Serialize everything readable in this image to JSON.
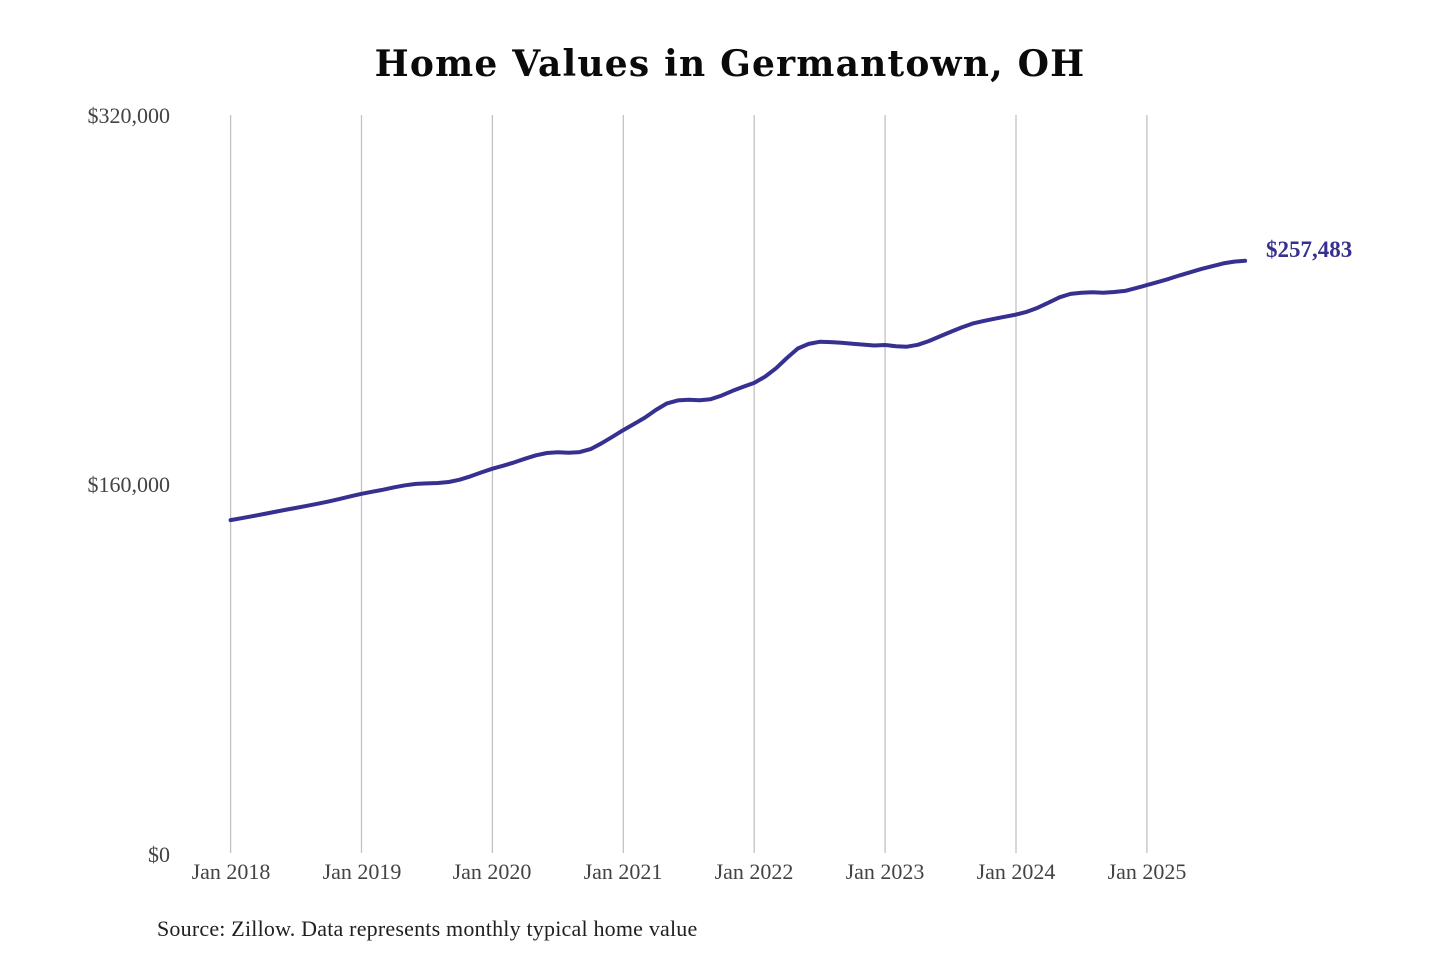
{
  "title": "Home Values in Germantown, OH",
  "end_label": "$257,483",
  "source_note": "Source: Zillow. Data represents monthly typical home value",
  "colors": {
    "line": "#363090",
    "grid": "#c2c2c2",
    "axis_text": "#434343",
    "title_text": "#0a0a0a",
    "source_text": "#202020",
    "background": "#ffffff"
  },
  "chart_data": {
    "type": "line",
    "title": "Home Values in Germantown, OH",
    "xlabel": "",
    "ylabel": "",
    "x_ticks": [
      "Jan 2018",
      "Jan 2019",
      "Jan 2020",
      "Jan 2021",
      "Jan 2022",
      "Jan 2023",
      "Jan 2024",
      "Jan 2025"
    ],
    "y_ticks": [
      "$0",
      "$160,000",
      "$320,000"
    ],
    "y_tick_values": [
      0,
      160000,
      320000
    ],
    "ylim": [
      0,
      320000
    ],
    "grid": "vertical-only",
    "legend": "none",
    "x_unit": "month",
    "x_start": "Jan 2018",
    "x_end": "Oct 2025",
    "final_value": 257483,
    "final_value_label": "$257,483",
    "series": [
      {
        "name": "Typical home value",
        "values": [
          145000,
          145800,
          146700,
          147600,
          148500,
          149400,
          150300,
          151200,
          152100,
          153100,
          154200,
          155300,
          156400,
          157300,
          158200,
          159200,
          160100,
          160700,
          160900,
          161100,
          161500,
          162500,
          164000,
          165700,
          167300,
          168600,
          170000,
          171600,
          173100,
          174100,
          174400,
          174200,
          174500,
          175800,
          178300,
          181100,
          184000,
          186700,
          189500,
          192800,
          195600,
          196900,
          197200,
          197000,
          197400,
          199000,
          201000,
          202800,
          204500,
          207200,
          210800,
          215300,
          219400,
          221400,
          222300,
          222200,
          221900,
          221500,
          221100,
          220700,
          220900,
          220400,
          220200,
          221000,
          222600,
          224600,
          226600,
          228500,
          230200,
          231300,
          232300,
          233200,
          234100,
          235300,
          237100,
          239300,
          241600,
          243100,
          243600,
          243800,
          243600,
          243900,
          244400,
          245600,
          246900,
          248200,
          249600,
          251100,
          252500,
          253900,
          255100,
          256300,
          257100,
          257483
        ]
      }
    ],
    "source": "Source: Zillow. Data represents monthly typical home value"
  }
}
